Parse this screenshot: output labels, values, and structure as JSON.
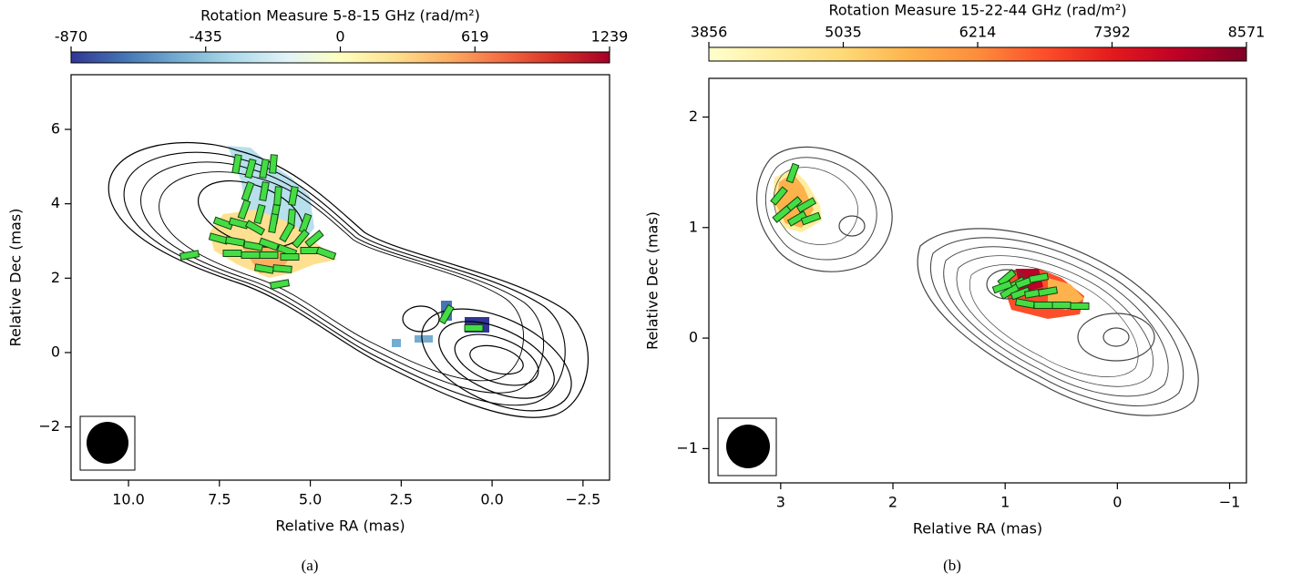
{
  "chart_data": [
    {
      "type": "map",
      "title": "Rotation Measure 5-8-15 GHz (rad/m²)",
      "xlabel": "Relative RA (mas)",
      "ylabel": "Relative Dec (mas)",
      "xlim": [
        11.58,
        -3.23
      ],
      "ylim": [
        -3.43,
        7.47
      ],
      "xticks": [
        {
          "value": 10,
          "label": "10.0"
        },
        {
          "value": 7.5,
          "label": "7.5"
        },
        {
          "value": 5,
          "label": "5.0"
        },
        {
          "value": 2.5,
          "label": "2.5"
        },
        {
          "value": 0,
          "label": "0.0"
        },
        {
          "value": -2.5,
          "label": "−2.5"
        }
      ],
      "yticks": [
        {
          "value": -2,
          "label": "−2"
        },
        0,
        2,
        4,
        6
      ],
      "cticks": [
        -870,
        -435,
        0,
        619,
        1239
      ],
      "colormap": [
        "#313695",
        "#4575b4",
        "#74add1",
        "#abd9e9",
        "#e0f3f8",
        "#ffffbf",
        "#fee090",
        "#fdae61",
        "#f46d43",
        "#d73027",
        "#a50026"
      ],
      "caption": "(a)"
    },
    {
      "type": "map",
      "title": "Rotation Measure 15-22-44 GHz (rad/m²)",
      "xlabel": "Relative RA (mas)",
      "ylabel": "Relative Dec (mas)",
      "xlim": [
        3.64,
        -1.15
      ],
      "ylim": [
        -1.31,
        2.35
      ],
      "xticks": [
        3,
        2,
        1,
        0,
        {
          "value": -1,
          "label": "−1"
        }
      ],
      "yticks": [
        {
          "value": -1,
          "label": "−1"
        },
        0,
        1,
        2
      ],
      "cticks": [
        3856,
        5035,
        6214,
        7392,
        8571
      ],
      "colormap": [
        "#ffffcc",
        "#ffeda0",
        "#fed976",
        "#feb24c",
        "#fd8d3c",
        "#fc4e2a",
        "#e31a1c",
        "#bd0026",
        "#800026"
      ],
      "caption": "(b)"
    }
  ]
}
